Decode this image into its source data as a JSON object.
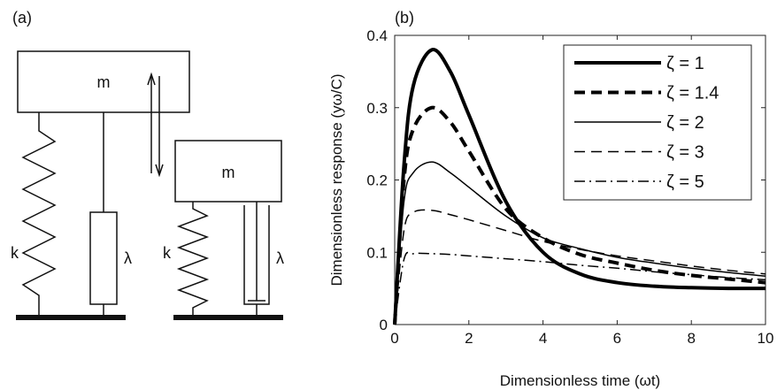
{
  "panel_a": {
    "label": "(a)",
    "mass_label_left": "m",
    "mass_label_right": "m",
    "spring_label_left": "k",
    "spring_label_right": "k",
    "damper_label_left": "λ",
    "damper_label_right": "λ"
  },
  "panel_b": {
    "label": "(b)"
  },
  "chart_data": {
    "type": "line",
    "xlabel": "Dimensionless time (ωt)",
    "ylabel": "Dimensionless response (yω/C)",
    "xlim": [
      0,
      10
    ],
    "ylim": [
      0,
      0.4
    ],
    "xticks": [
      "0",
      "2",
      "4",
      "6",
      "8",
      "10"
    ],
    "yticks": [
      "0",
      "0.1",
      "0.2",
      "0.3",
      "0.4"
    ],
    "legend_position": "top-right",
    "series": [
      {
        "name": "ζ = 1",
        "zeta": 1,
        "style": "thick-solid",
        "x": [
          0,
          0.25,
          0.5,
          1,
          1.5,
          2,
          3,
          4,
          5,
          6,
          7,
          8,
          9,
          10
        ],
        "y": [
          0,
          0.22,
          0.33,
          0.38,
          0.35,
          0.29,
          0.17,
          0.1,
          0.07,
          0.058,
          0.053,
          0.051,
          0.05,
          0.05
        ]
      },
      {
        "name": "ζ = 1.4",
        "zeta": 1.4,
        "style": "thick-dashed",
        "x": [
          0,
          0.25,
          0.5,
          1,
          1.5,
          2,
          3,
          4,
          5,
          6,
          7,
          8,
          9,
          10
        ],
        "y": [
          0,
          0.2,
          0.27,
          0.3,
          0.28,
          0.24,
          0.16,
          0.12,
          0.097,
          0.085,
          0.075,
          0.068,
          0.063,
          0.058
        ]
      },
      {
        "name": "ζ = 2",
        "zeta": 2,
        "style": "thin-solid",
        "x": [
          0,
          0.25,
          0.5,
          1,
          1.5,
          2,
          3,
          4,
          5,
          6,
          7,
          8,
          9,
          10
        ],
        "y": [
          0,
          0.17,
          0.21,
          0.225,
          0.21,
          0.19,
          0.15,
          0.12,
          0.105,
          0.093,
          0.085,
          0.078,
          0.072,
          0.067
        ]
      },
      {
        "name": "ζ = 3",
        "zeta": 3,
        "style": "thin-dashed",
        "x": [
          0,
          0.25,
          0.5,
          1,
          1.5,
          2,
          3,
          4,
          5,
          6,
          7,
          8,
          9,
          10
        ],
        "y": [
          0,
          0.13,
          0.155,
          0.158,
          0.152,
          0.145,
          0.13,
          0.115,
          0.104,
          0.095,
          0.088,
          0.081,
          0.075,
          0.07
        ]
      },
      {
        "name": "ζ = 5",
        "zeta": 5,
        "style": "dash-dot",
        "x": [
          0,
          0.25,
          0.5,
          1,
          1.5,
          2,
          3,
          4,
          5,
          6,
          7,
          8,
          9,
          10
        ],
        "y": [
          0,
          0.09,
          0.098,
          0.098,
          0.097,
          0.095,
          0.091,
          0.087,
          0.082,
          0.078,
          0.073,
          0.069,
          0.065,
          0.062
        ]
      }
    ]
  }
}
